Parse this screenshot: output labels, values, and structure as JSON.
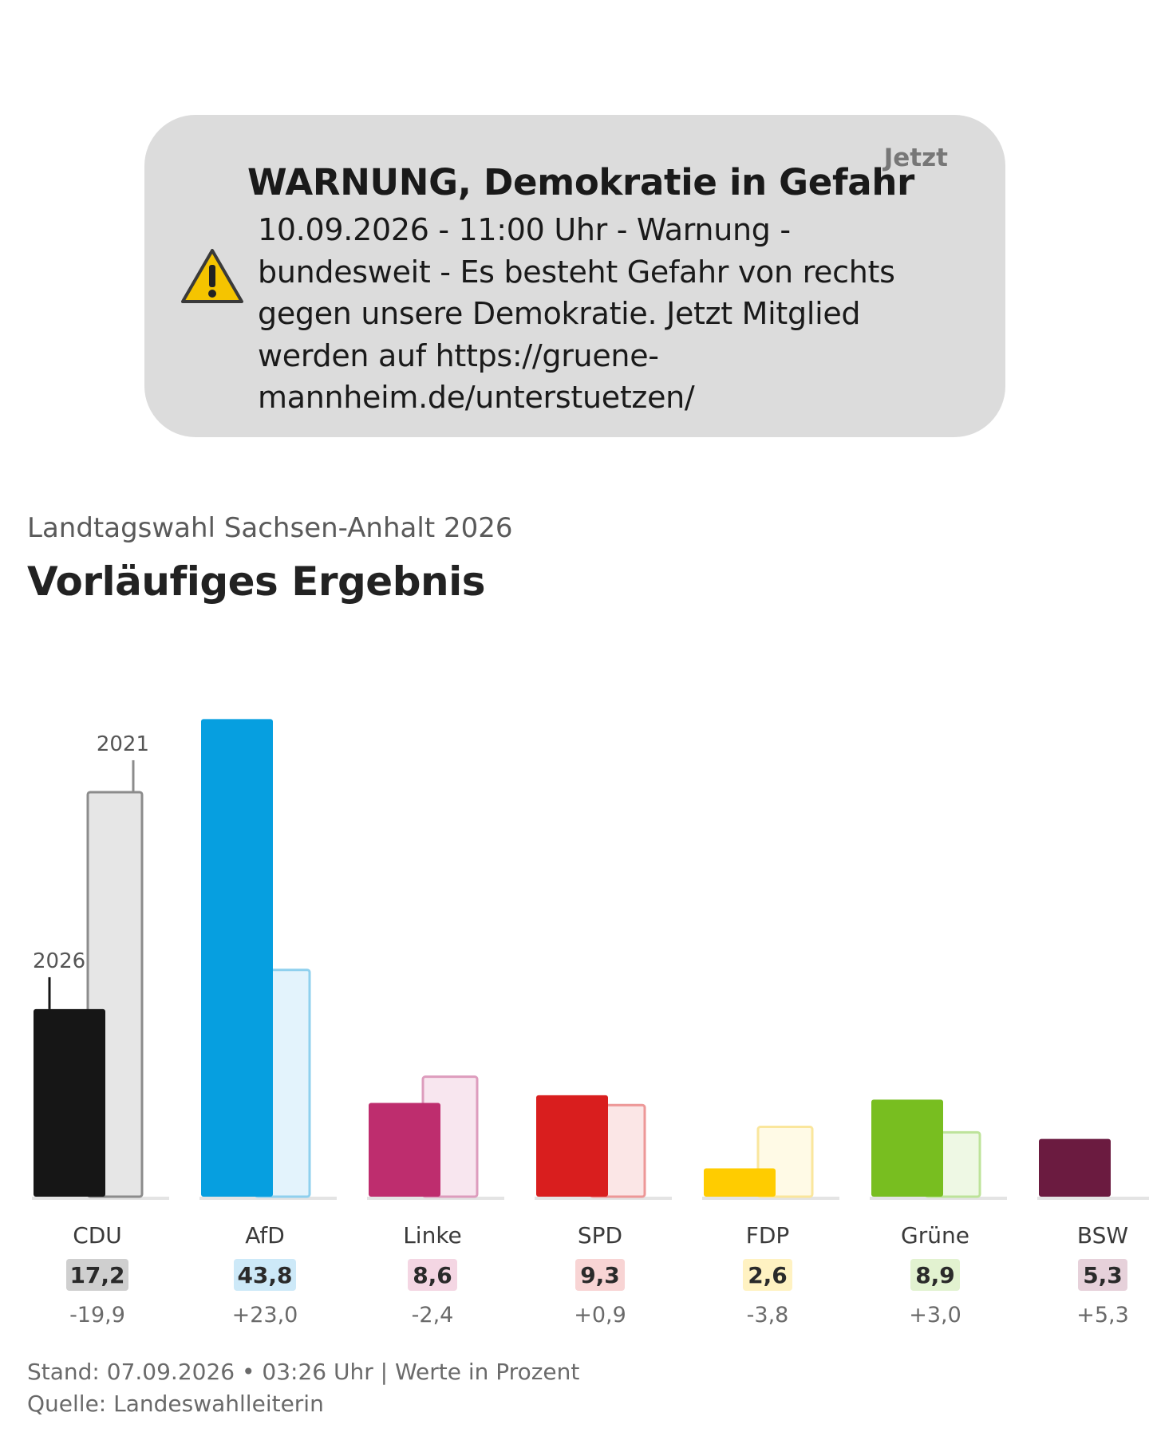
{
  "notification": {
    "time": "Jetzt",
    "title": "WARNUNG, Demokratie in Gefahr",
    "body_lines": [
      "10.09.2026 - 11:00 Uhr - Warnung -",
      "bundesweit - Es besteht Gefahr von rechts",
      "gegen unsere Demokratie. Jetzt Mitglied",
      "werden auf https://gruene-",
      "mannheim.de/unterstuetzen/"
    ],
    "icon": "warning-triangle-icon",
    "icon_color": "#f5c400"
  },
  "header": {
    "subtitle": "Landtagswahl Sachsen-Anhalt 2026",
    "title": "Vorläufiges Ergebnis"
  },
  "footer": {
    "stand": "Stand: 07.09.2026 • 03:26 Uhr | Werte in Prozent",
    "source": "Quelle: Landeswahlleiterin"
  },
  "chart_data": {
    "type": "bar",
    "categories": [
      "CDU",
      "AfD",
      "Linke",
      "SPD",
      "FDP",
      "Grüne",
      "BSW"
    ],
    "series": [
      {
        "name": "2026",
        "values": [
          17.2,
          43.8,
          8.6,
          9.3,
          2.6,
          8.9,
          5.3
        ]
      },
      {
        "name": "2021",
        "values": [
          37.1,
          20.8,
          11.0,
          8.4,
          6.4,
          5.9,
          null
        ]
      }
    ],
    "value_labels": [
      "17,2",
      "43,8",
      "8,6",
      "9,3",
      "2,6",
      "8,9",
      "5,3"
    ],
    "diff_labels": [
      "-19,9",
      "+23,0",
      "-2,4",
      "+0,9",
      "-3,8",
      "+3,0",
      "+5,3"
    ],
    "annotations": [
      "2026",
      "2021"
    ],
    "colors": [
      "#161616",
      "#069fe0",
      "#be2d6e",
      "#d91e1e",
      "#ffcc00",
      "#78be20",
      "#6b1b40"
    ],
    "colors_prev_fill": [
      "#e6e6e6",
      "#e3f3fc",
      "#f8e6ef",
      "#fbe6e6",
      "#fffae6",
      "#eef8e4",
      "#f0e4ea"
    ],
    "colors_prev_stroke": [
      "#8c8c8c",
      "#8fd0ee",
      "#dd9cbd",
      "#ed9797",
      "#fae69c",
      "#bde39a",
      "#c6a0b2"
    ],
    "label_bg": [
      "#cfcfcf",
      "#cde9f8",
      "#f4d6e3",
      "#f8d4d4",
      "#fff2c2",
      "#e2f2d0",
      "#e6d1da"
    ],
    "ylim": [
      0,
      45
    ],
    "legend": "none",
    "grid": false
  }
}
